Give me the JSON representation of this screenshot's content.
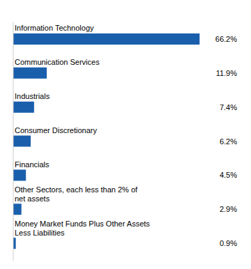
{
  "chart_data": {
    "type": "bar",
    "orientation": "horizontal",
    "categories": [
      "Information Technology",
      "Communication Services",
      "Industrials",
      "Consumer Discretionary",
      "Financials",
      "Other Sectors, each less than 2% of\nnet assets",
      "Money Market Funds Plus Other Assets\nLess Liabilities"
    ],
    "values": [
      66.2,
      11.9,
      7.4,
      6.2,
      4.5,
      2.9,
      0.9
    ],
    "value_labels": [
      "66.2%",
      "11.9%",
      "7.4%",
      "6.2%",
      "4.5%",
      "2.9%",
      "0.9%"
    ],
    "data_labels": true,
    "color": "#1a5fac",
    "xlim": [
      0,
      80
    ],
    "tick_labels": "y"
  }
}
